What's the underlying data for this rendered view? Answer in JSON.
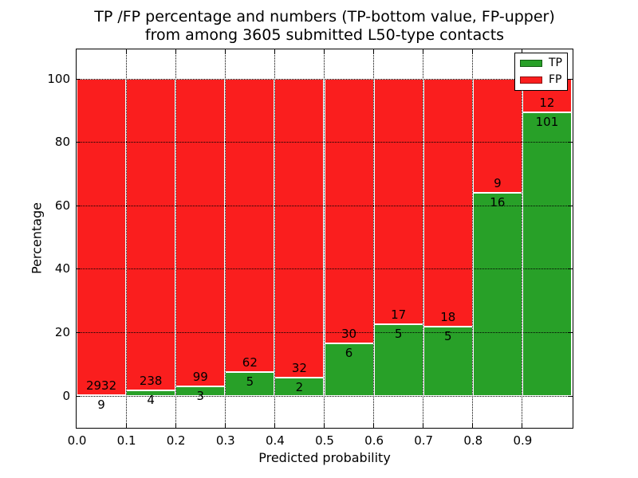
{
  "title": {
    "line1": "TP /FP percentage and numbers (TP-bottom value, FP-upper)",
    "line2": "from among 3605 submitted L50-type contacts"
  },
  "axes": {
    "xlabel": "Predicted probability",
    "ylabel": "Percentage",
    "xtick_labels": [
      "0.0",
      "0.1",
      "0.2",
      "0.3",
      "0.4",
      "0.5",
      "0.6",
      "0.7",
      "0.8",
      "0.9"
    ],
    "ytick_labels": [
      "0",
      "20",
      "40",
      "60",
      "80",
      "100"
    ]
  },
  "legend": {
    "items": [
      {
        "label": "TP",
        "color": "#28a028",
        "edge": "#135c13"
      },
      {
        "label": "FP",
        "color": "#fa1e1e",
        "edge": "#8f1010"
      }
    ]
  },
  "chart_data": {
    "type": "bar",
    "stacked": true,
    "normalized": "each bin scaled to 100%, green TP share on bottom, red FP share on top",
    "title": "TP /FP percentage and numbers (TP-bottom value, FP-upper) from among 3605 submitted L50-type contacts",
    "xlabel": "Predicted probability",
    "ylabel": "Percentage",
    "categories": [
      "0.0-0.1",
      "0.1-0.2",
      "0.2-0.3",
      "0.3-0.4",
      "0.4-0.5",
      "0.5-0.6",
      "0.6-0.7",
      "0.7-0.8",
      "0.8-0.9",
      "0.9-1.0"
    ],
    "bin_width": 0.1,
    "series": [
      {
        "name": "TP",
        "color": "#28a028",
        "counts": [
          9,
          4,
          3,
          5,
          2,
          6,
          5,
          5,
          16,
          101
        ]
      },
      {
        "name": "FP",
        "color": "#fa1e1e",
        "counts": [
          2932,
          238,
          99,
          62,
          32,
          30,
          17,
          18,
          9,
          12
        ]
      }
    ],
    "tp_percent": [
      0.31,
      1.65,
      2.94,
      7.46,
      5.88,
      16.67,
      22.73,
      21.74,
      64.0,
      89.38
    ],
    "total_contacts": 3605,
    "xlim": [
      0.0,
      1.0
    ],
    "ylim": [
      -10,
      110
    ],
    "xticks": [
      0.0,
      0.1,
      0.2,
      0.3,
      0.4,
      0.5,
      0.6,
      0.7,
      0.8,
      0.9
    ],
    "yticks": [
      0,
      20,
      40,
      60,
      80,
      100
    ],
    "grid": "dotted, both axes, drawn over bars",
    "legend_position": "upper right",
    "bar_edge_color": "#ffffff"
  }
}
